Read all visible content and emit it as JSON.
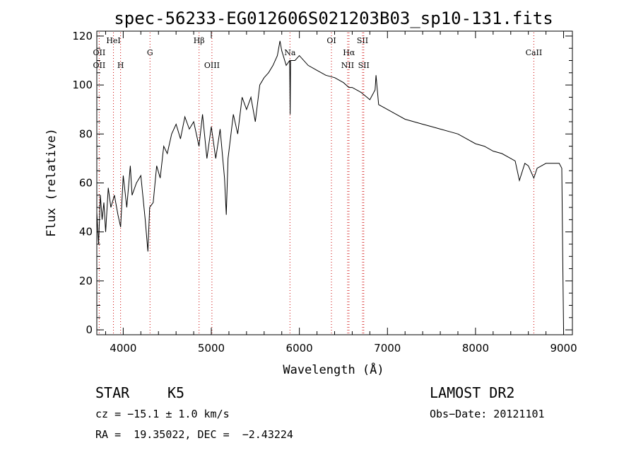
{
  "chart_data": {
    "type": "line",
    "title": "spec-56233-EG012606S021203B03_sp10-131.fits",
    "xlabel": "Wavelength (Å)",
    "ylabel": "Flux (relative)",
    "xlim": [
      3700,
      9100
    ],
    "ylim": [
      -2,
      122
    ],
    "x_ticks": [
      4000,
      5000,
      6000,
      7000,
      8000,
      9000
    ],
    "y_ticks": [
      0,
      20,
      40,
      60,
      80,
      100,
      120
    ],
    "series": [
      {
        "x": [
          3700,
          3720,
          3740,
          3760,
          3780,
          3800,
          3830,
          3860,
          3900,
          3940,
          3970,
          4000,
          4040,
          4080,
          4100,
          4150,
          4200,
          4250,
          4280,
          4300,
          4340,
          4380,
          4420,
          4460,
          4500,
          4550,
          4600,
          4650,
          4700,
          4750,
          4800,
          4860,
          4900,
          4950,
          5000,
          5050,
          5100,
          5150,
          5170,
          5190,
          5250,
          5300,
          5350,
          5400,
          5450,
          5500,
          5550,
          5600,
          5650,
          5700,
          5750,
          5780,
          5800,
          5850,
          5890,
          5895,
          5900,
          5950,
          6000,
          6100,
          6200,
          6300,
          6400,
          6500,
          6563,
          6600,
          6700,
          6800,
          6860,
          6870,
          6900,
          7000,
          7100,
          7200,
          7300,
          7400,
          7500,
          7600,
          7700,
          7800,
          7900,
          8000,
          8100,
          8200,
          8300,
          8400,
          8450,
          8498,
          8542,
          8560,
          8600,
          8662,
          8700,
          8800,
          8900,
          8950,
          8980,
          8990,
          9000
        ],
        "y": [
          48,
          35,
          55,
          45,
          52,
          40,
          58,
          50,
          55,
          47,
          42,
          63,
          50,
          67,
          55,
          60,
          63,
          45,
          32,
          50,
          52,
          67,
          62,
          75,
          72,
          80,
          84,
          78,
          87,
          82,
          85,
          75,
          88,
          70,
          83,
          70,
          82,
          62,
          47,
          70,
          88,
          80,
          95,
          90,
          95,
          85,
          100,
          103,
          105,
          108,
          112,
          118,
          114,
          108,
          110,
          88,
          110,
          110,
          112,
          108,
          106,
          104,
          103,
          101,
          99,
          99,
          97,
          94,
          98,
          104,
          92,
          90,
          88,
          86,
          85,
          84,
          83,
          82,
          81,
          80,
          78,
          76,
          75,
          73,
          72,
          70,
          69,
          61,
          66,
          68,
          67,
          62,
          66,
          68,
          68,
          68,
          66,
          30,
          0
        ]
      }
    ],
    "emission_lines": [
      {
        "wavelength": 3727,
        "label": "OII",
        "row": "mid"
      },
      {
        "wavelength": 3727,
        "label": "OII",
        "row": "low"
      },
      {
        "wavelength": 3889,
        "label": "HeI",
        "row": "top"
      },
      {
        "wavelength": 3970,
        "label": "H",
        "row": "low"
      },
      {
        "wavelength": 4304,
        "label": "G",
        "row": "mid"
      },
      {
        "wavelength": 4861,
        "label": "Hβ",
        "row": "top"
      },
      {
        "wavelength": 5007,
        "label": "OIII",
        "row": "low"
      },
      {
        "wavelength": 5893,
        "label": "Na",
        "row": "mid"
      },
      {
        "wavelength": 6364,
        "label": "OI",
        "row": "top"
      },
      {
        "wavelength": 6563,
        "label": "Hα",
        "row": "mid"
      },
      {
        "wavelength": 6548,
        "label": "NII",
        "row": "low"
      },
      {
        "wavelength": 6717,
        "label": "SII",
        "row": "top"
      },
      {
        "wavelength": 6731,
        "label": "SII",
        "row": "low"
      },
      {
        "wavelength": 8662,
        "label": "CaII",
        "row": "mid"
      }
    ],
    "line_marker_color": "#cc0000",
    "grid": false,
    "legend": "none"
  },
  "footer": {
    "object_class": "STAR",
    "subclass": "K5",
    "survey": "LAMOST DR2",
    "cz": "cz = −15.1 ± 1.0 km/s",
    "obs_date": "Obs−Date: 20121101",
    "coords": "RA =  19.35022, DEC =  −2.43224"
  }
}
